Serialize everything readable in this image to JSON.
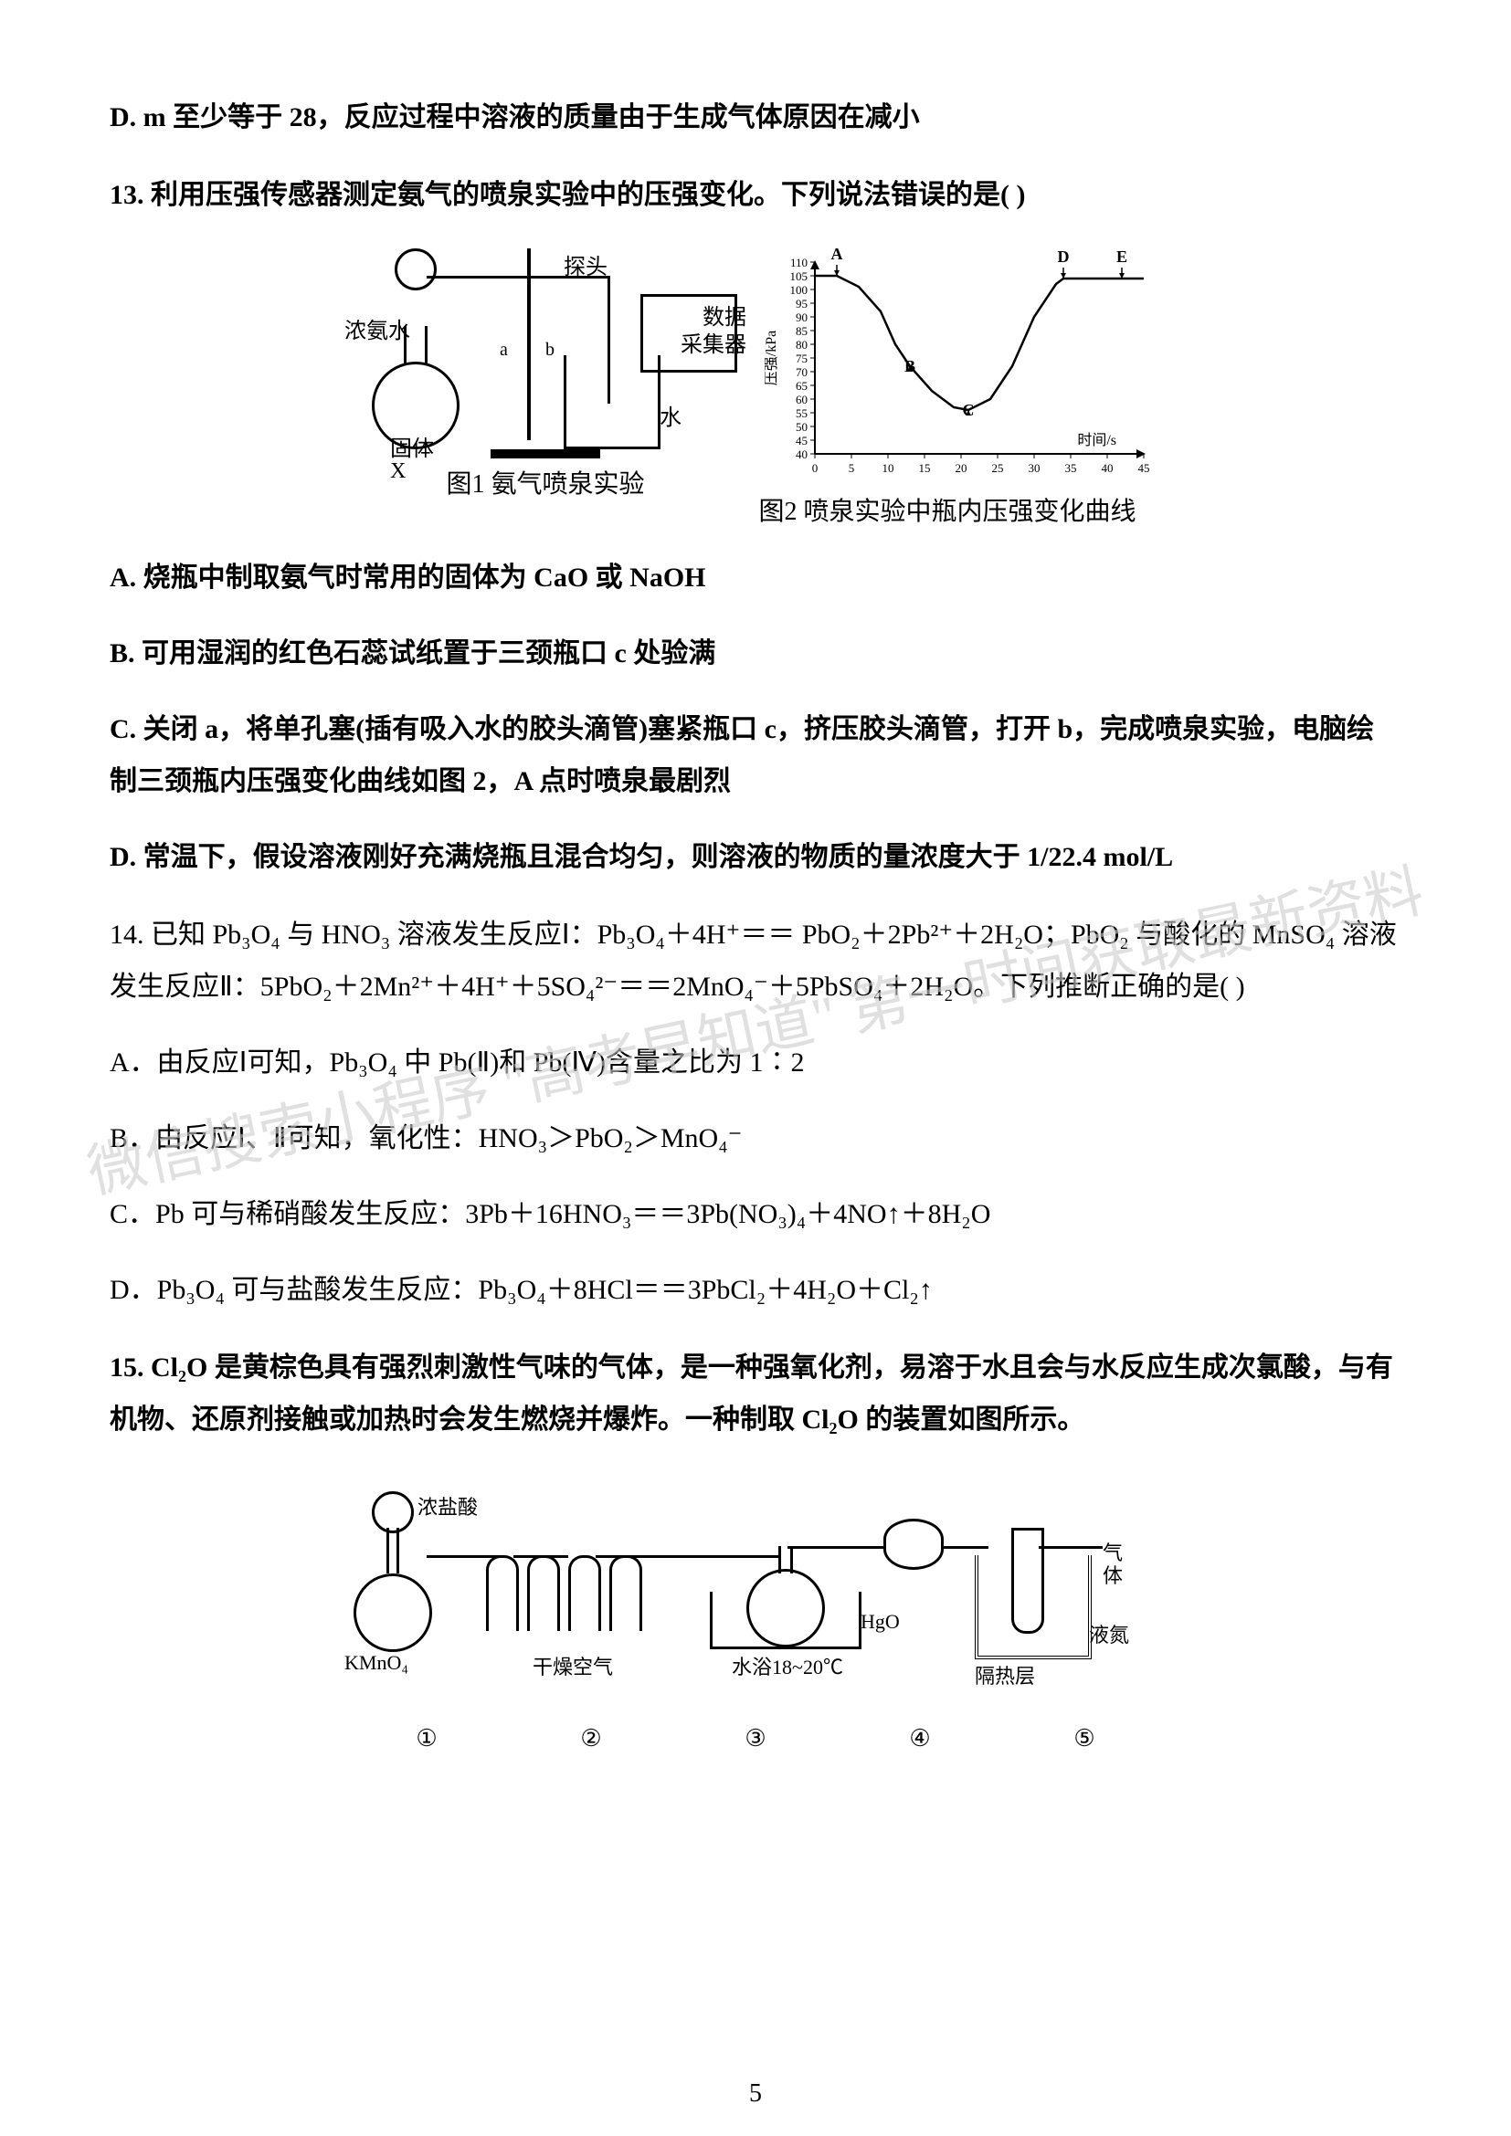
{
  "optD_top": "D. m 至少等于 28，反应过程中溶液的质量由于生成气体原因在减小",
  "q13": {
    "stem": "13. 利用压强传感器测定氨气的喷泉实验中的压强变化。下列说法错误的是(        )",
    "fig1": {
      "label_ammonia": "浓氨水",
      "label_probe": "探头",
      "label_collector1": "数据",
      "label_collector2": "采集器",
      "label_solidX1": "X",
      "label_solidX2": "固体",
      "label_water": "水",
      "label_a": "a",
      "label_b": "b",
      "caption": "图1 氨气喷泉实验"
    },
    "fig2": {
      "ylabel": "压强/kPa",
      "xlabel": "时间/s",
      "yticks": [
        40,
        45,
        50,
        55,
        60,
        65,
        70,
        75,
        80,
        85,
        90,
        95,
        100,
        105,
        110
      ],
      "xticks": [
        0,
        5,
        10,
        15,
        20,
        25,
        30,
        35,
        40,
        45
      ],
      "ylim": [
        40,
        110
      ],
      "xlim": [
        0,
        45
      ],
      "points": {
        "A": [
          3,
          105
        ],
        "B": [
          13,
          72
        ],
        "C": [
          21,
          56
        ],
        "D": [
          34,
          104
        ],
        "E": [
          42,
          104
        ]
      },
      "curve": [
        [
          0,
          105
        ],
        [
          3,
          105
        ],
        [
          6,
          101
        ],
        [
          9,
          92
        ],
        [
          11,
          80
        ],
        [
          13,
          72
        ],
        [
          16,
          63
        ],
        [
          19,
          57
        ],
        [
          21,
          56
        ],
        [
          24,
          60
        ],
        [
          27,
          72
        ],
        [
          30,
          90
        ],
        [
          33,
          102
        ],
        [
          34,
          104
        ],
        [
          37,
          104
        ],
        [
          42,
          104
        ],
        [
          45,
          104
        ]
      ],
      "line_color": "#000000",
      "axis_color": "#000000",
      "caption": "图2 喷泉实验中瓶内压强变化曲线"
    },
    "A": "A. 烧瓶中制取氨气时常用的固体为 CaO 或 NaOH",
    "B": "B. 可用湿润的红色石蕊试纸置于三颈瓶口 c 处验满",
    "C1": "C. 关闭 a，将单孔塞(插有吸入水的胶头滴管)塞紧瓶口 c，挤压胶头滴管，打开 b，完成喷泉实验，电脑绘",
    "C2": "制三颈瓶内压强变化曲线如图 2，A 点时喷泉最剧烈",
    "D": "D. 常温下，假设溶液刚好充满烧瓶且混合均匀，则溶液的物质的量浓度大于 1/22.4 mol/L"
  },
  "q14": {
    "stem1": "14. 已知 Pb₃O₄ 与 HNO₃ 溶液发生反应Ⅰ：Pb₃O₄＋4H⁺＝＝ PbO₂＋2Pb²⁺＋2H₂O；PbO₂ 与酸化的 MnSO₄ 溶液",
    "stem2": "发生反应Ⅱ：5PbO₂＋2Mn²⁺＋4H⁺＋5SO₄²⁻＝＝2MnO₄⁻＋5PbSO₄＋2H₂O。下列推断正确的是(        )",
    "A": "A．由反应Ⅰ可知，Pb₃O₄ 中 Pb(Ⅱ)和 Pb(Ⅳ)含量之比为 1∶2",
    "B": "B．由反应Ⅰ、Ⅱ可知，氧化性：HNO₃＞PbO₂＞MnO₄⁻",
    "C": "C．Pb 可与稀硝酸发生反应：3Pb＋16HNO₃＝＝3Pb(NO₃)₄＋4NO↑＋8H₂O",
    "D": "D．Pb₃O₄ 可与盐酸发生反应：Pb₃O₄＋8HCl＝＝3PbCl₂＋4H₂O＋Cl₂↑"
  },
  "q15": {
    "stem1": "15. Cl₂O 是黄棕色具有强烈刺激性气味的气体，是一种强氧化剂，易溶于水且会与水反应生成次氯酸，与有",
    "stem2": "机物、还原剂接触或加热时会发生燃烧并爆炸。一种制取 Cl₂O 的装置如图所示。",
    "labels": {
      "hcl": "浓盐酸",
      "kmno4": "KMnO₄",
      "dryair": "干燥空气",
      "bath": "水浴18~20℃",
      "hgo": "HgO",
      "insul": "隔热层",
      "ln2": "液氮",
      "gas1": "气",
      "gas2": "体"
    },
    "nums": [
      "①",
      "②",
      "③",
      "④",
      "⑤"
    ]
  },
  "watermark": "微信搜索小程序 \"高考早知道\"\n第一时间获取最新资料",
  "page_number": "5"
}
